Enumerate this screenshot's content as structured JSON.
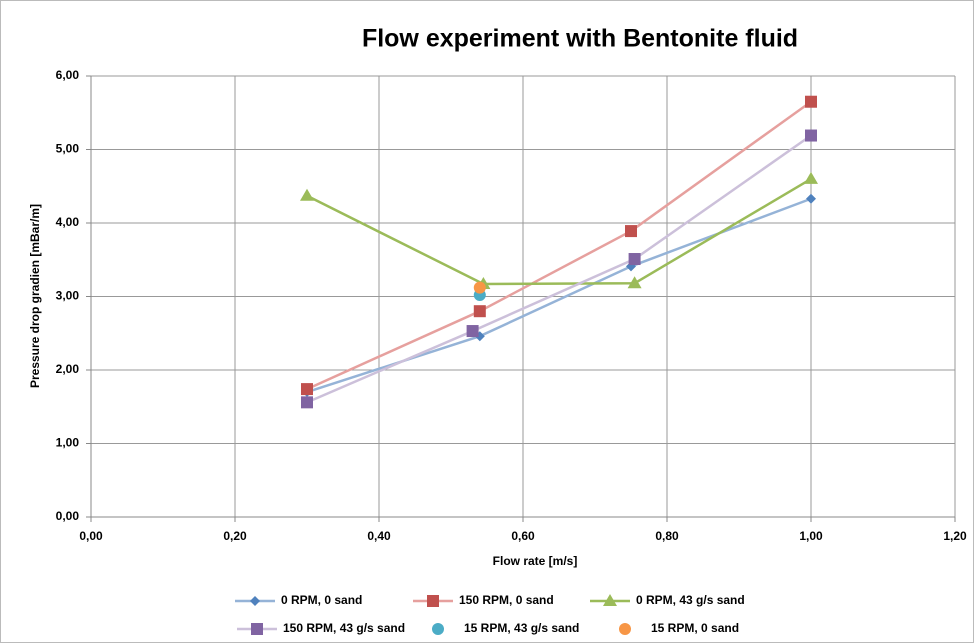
{
  "chart_data": {
    "type": "line",
    "title": "Flow experiment with Bentonite fluid",
    "x_label": "Flow  rate [m/s]",
    "y_label": "Pressure drop gradien [mBar/m]",
    "xlim": [
      0,
      1.2
    ],
    "ylim": [
      0,
      6
    ],
    "xticks": [
      {
        "value": 0,
        "label": "0,00"
      },
      {
        "value": 0.2,
        "label": "0,20"
      },
      {
        "value": 0.4,
        "label": "0,40"
      },
      {
        "value": 0.6,
        "label": "0,60"
      },
      {
        "value": 0.8,
        "label": "0,80"
      },
      {
        "value": 1,
        "label": "1,00"
      },
      {
        "value": 1.2,
        "label": "1,20"
      }
    ],
    "yticks": [
      {
        "value": 0,
        "label": "0,00"
      },
      {
        "value": 1,
        "label": "1,00"
      },
      {
        "value": 2,
        "label": "2,00"
      },
      {
        "value": 3,
        "label": "3,00"
      },
      {
        "value": 4,
        "label": "4,00"
      },
      {
        "value": 5,
        "label": "5,00"
      },
      {
        "value": 6,
        "label": "6,00"
      }
    ],
    "grid": true,
    "legend": "bottom",
    "series": [
      {
        "name": "0 RPM, 0 sand",
        "color": "#4f81bd",
        "line_color": "#95b3d7",
        "marker": "diamond",
        "x": [
          0.3,
          0.54,
          0.75,
          1.0
        ],
        "values": [
          1.7,
          2.46,
          3.41,
          4.33
        ]
      },
      {
        "name": "150 RPM, 0 sand",
        "color": "#c0504d",
        "line_color": "#e6a09e",
        "marker": "square",
        "x": [
          0.3,
          0.54,
          0.75,
          1.0
        ],
        "values": [
          1.74,
          2.8,
          3.89,
          5.65
        ]
      },
      {
        "name": "0 RPM, 43 g/s sand",
        "color": "#9bbb59",
        "line_color": "#9bbb59",
        "marker": "triangle",
        "x": [
          0.3,
          0.545,
          0.755,
          1.0
        ],
        "values": [
          4.37,
          3.17,
          3.18,
          4.6
        ]
      },
      {
        "name": "150 RPM, 43 g/s sand",
        "color": "#8064a2",
        "line_color": "#ccc0da",
        "marker": "square",
        "x": [
          0.3,
          0.53,
          0.755,
          1.0
        ],
        "values": [
          1.56,
          2.53,
          3.51,
          5.19
        ]
      },
      {
        "name": "15 RPM, 43 g/s sand",
        "color": "#4bacc6",
        "marker": "circle",
        "x": [
          0.54
        ],
        "values": [
          3.02
        ]
      },
      {
        "name": "15 RPM, 0 sand",
        "color": "#f79646",
        "marker": "circle",
        "x": [
          0.54
        ],
        "values": [
          3.12
        ]
      }
    ]
  }
}
